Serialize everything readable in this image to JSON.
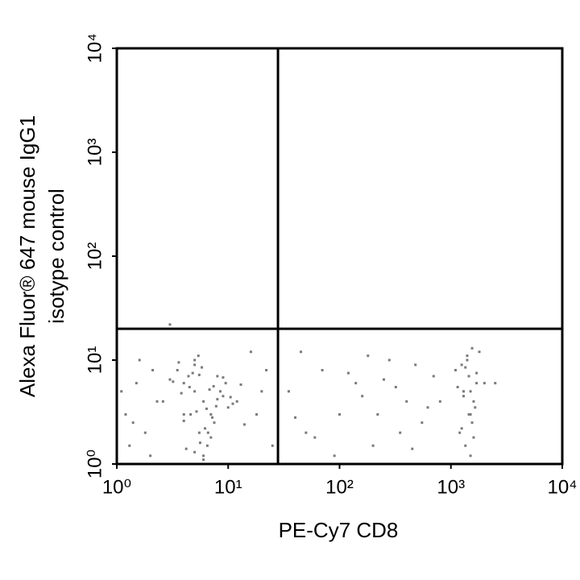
{
  "chart_data": {
    "type": "scatter",
    "x_label": "PE-Cy7 CD8",
    "y_label": [
      "Alexa Fluor® 647 mouse IgG1",
      "isotype control"
    ],
    "xscale": "log",
    "yscale": "log",
    "xlim": [
      1,
      10000
    ],
    "ylim": [
      1,
      10000
    ],
    "xticks": [
      {
        "value": 1,
        "label": "10⁰"
      },
      {
        "value": 10,
        "label": "10¹"
      },
      {
        "value": 100,
        "label": "10²"
      },
      {
        "value": 1000,
        "label": "10³"
      },
      {
        "value": 10000,
        "label": "10⁴"
      }
    ],
    "yticks": [
      {
        "value": 1,
        "label": "10⁰"
      },
      {
        "value": 10,
        "label": "10¹"
      },
      {
        "value": 100,
        "label": "10²"
      },
      {
        "value": 1000,
        "label": "10³"
      },
      {
        "value": 10000,
        "label": "10⁴"
      }
    ],
    "gates": {
      "x": 28,
      "y": 20
    },
    "color": "#7a7a7a",
    "x": [
      5,
      6,
      4,
      7,
      8,
      5.5,
      3.5,
      9,
      6.5,
      4.5,
      10,
      5,
      7.5,
      3,
      6,
      8.5,
      4,
      5,
      12,
      7,
      4.8,
      6.2,
      3.8,
      9.5,
      5.2,
      6.8,
      4.2,
      11,
      5.8,
      7.2,
      3.2,
      6,
      8,
      4.6,
      5.4,
      13,
      6.6,
      4.4,
      7.8,
      5.6,
      2.6,
      14,
      3.6,
      9,
      5,
      6.4,
      7.4,
      4,
      10.5,
      5.5,
      1.2,
      1.5,
      1.8,
      2.1,
      1.3,
      2.3,
      1.6,
      1.1,
      2,
      1.4,
      35,
      50,
      70,
      100,
      140,
      200,
      280,
      400,
      550,
      700,
      45,
      90,
      160,
      250,
      350,
      480,
      620,
      60,
      120,
      220,
      320,
      450,
      40,
      180,
      800,
      18,
      22,
      25,
      16,
      20,
      1100,
      1300,
      1500,
      1700,
      1400,
      1200,
      1600,
      1800,
      1350,
      1450,
      1550,
      1250,
      1650,
      1150,
      1500,
      1400,
      1700,
      1300,
      2000,
      1600,
      1450,
      1350,
      1550,
      1250,
      1500,
      2500,
      3
    ],
    "y": [
      5,
      4,
      6,
      3,
      7,
      2,
      8,
      4.5,
      1.5,
      5.5,
      3.5,
      9,
      2.5,
      6.5,
      1.2,
      5,
      3,
      10,
      4,
      1.8,
      7.5,
      2.2,
      4.8,
      6,
      3.2,
      5.2,
      1.4,
      3.8,
      8.5,
      2.8,
      6.2,
      1.1,
      4.2,
      3,
      11,
      5.8,
      2,
      7,
      3.6,
      1.6,
      4,
      2.4,
      9.5,
      6.8,
      1.3,
      3.4,
      5.6,
      2.6,
      4.4,
      7.2,
      3,
      6,
      2,
      8,
      1.5,
      4,
      10,
      5,
      1.2,
      2.5,
      5,
      2,
      8,
      3,
      6,
      1.5,
      10,
      4,
      2.5,
      7,
      12,
      1.2,
      4.5,
      6.5,
      2,
      9,
      3.5,
      1.8,
      7.5,
      3,
      5.5,
      1.4,
      2.8,
      11,
      4,
      3,
      8,
      1.5,
      12,
      5,
      8,
      5,
      3,
      6,
      10,
      2,
      4,
      12,
      1.5,
      7,
      2.5,
      9,
      3.5,
      5.5,
      1.2,
      11,
      7.5,
      4.5,
      6,
      1.8,
      3,
      8.5,
      13,
      2.2,
      5,
      6,
      22
    ]
  }
}
